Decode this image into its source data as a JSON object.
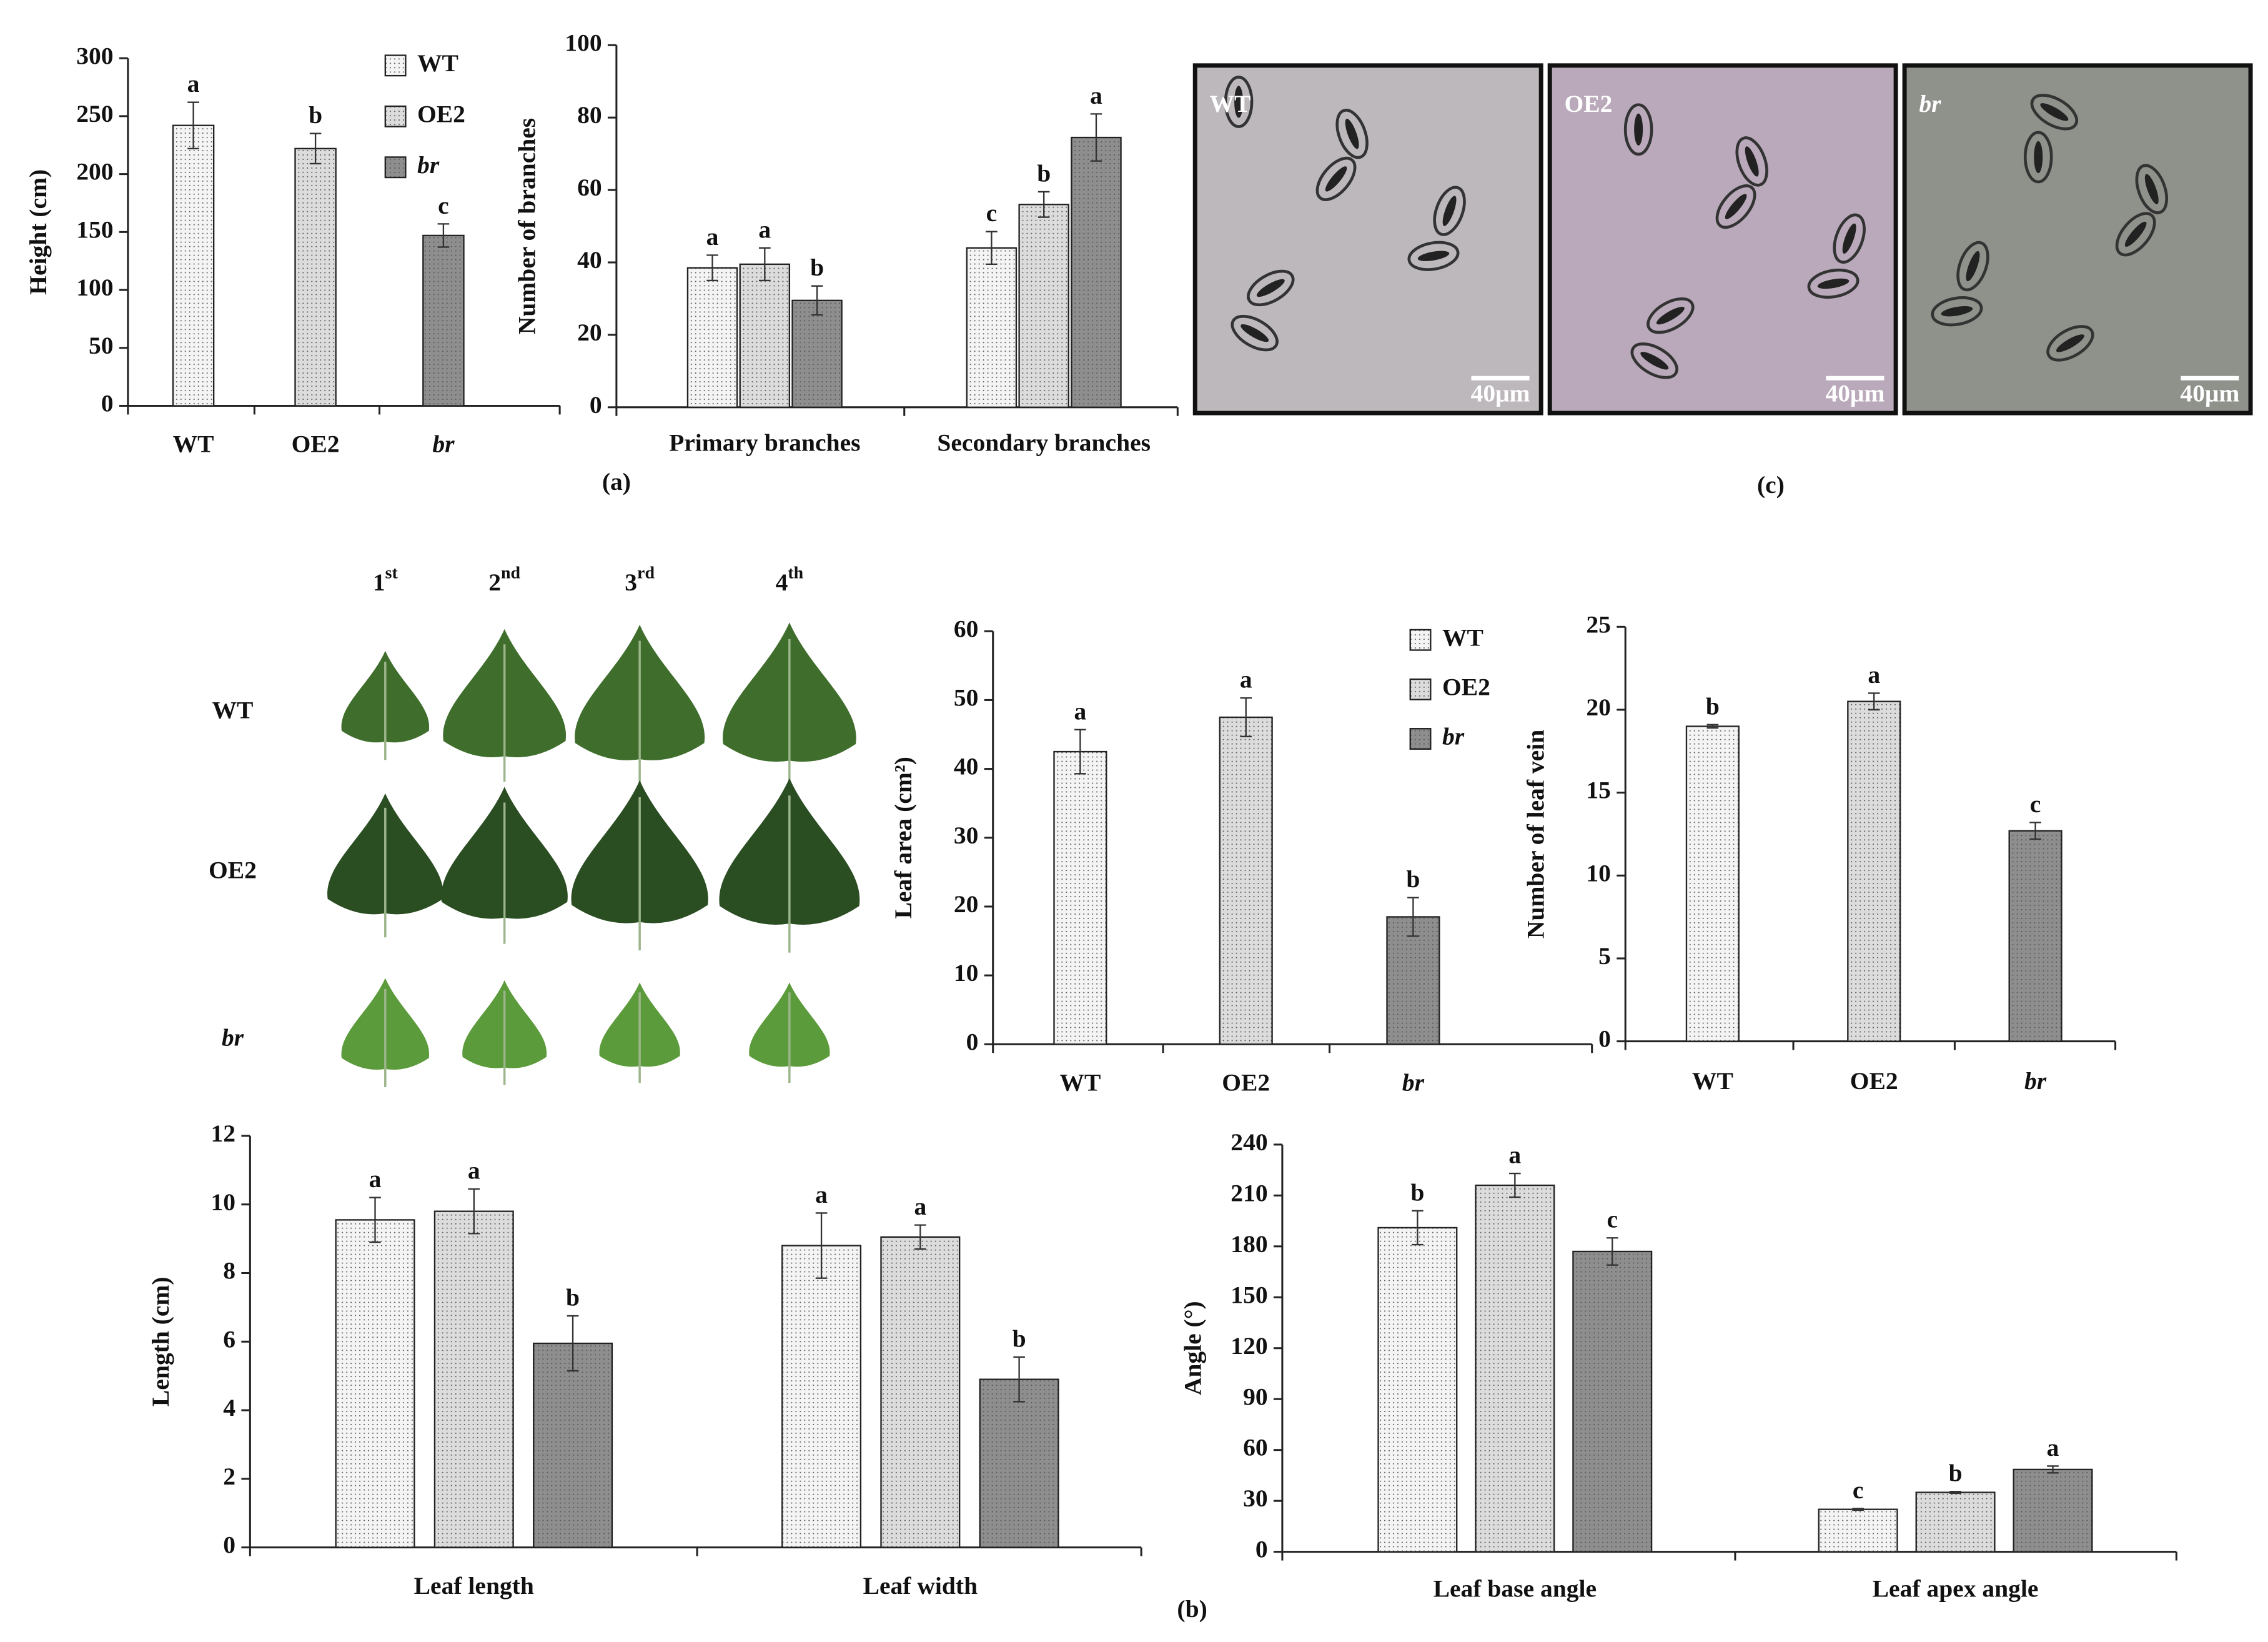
{
  "chart_data": [
    {
      "type": "bar",
      "ylabel": "Height (cm)",
      "categories": [
        "WT",
        "OE2",
        "br"
      ],
      "values": [
        242,
        222,
        147
      ],
      "errors": [
        20,
        13,
        10
      ],
      "labels": [
        "a",
        "b",
        "c"
      ],
      "colors": [
        "#f4f4f4",
        "#dcdcdc",
        "#8e8e8e"
      ],
      "legend": [
        "WT",
        "OE2",
        "br"
      ],
      "italic": [
        false,
        false,
        true
      ],
      "ylim": [
        0,
        300
      ],
      "yticks": [
        0,
        50,
        100,
        150,
        200,
        250,
        300
      ]
    },
    {
      "type": "bar",
      "ylabel": "Number of branches",
      "panel_label": "(a)",
      "categories": [
        "Primary branches",
        "Secondary branches"
      ],
      "series": [
        {
          "color": "#f4f4f4",
          "values": [
            38.5,
            44
          ],
          "errors": [
            3.5,
            4.5
          ],
          "labels": [
            "a",
            "c"
          ]
        },
        {
          "color": "#dcdcdc",
          "values": [
            39.5,
            56
          ],
          "errors": [
            4.5,
            3.5
          ],
          "labels": [
            "a",
            "b"
          ]
        },
        {
          "color": "#8e8e8e",
          "values": [
            29.5,
            74.5
          ],
          "errors": [
            4,
            6.5
          ],
          "labels": [
            "b",
            "a"
          ]
        }
      ],
      "ylim": [
        0,
        100
      ],
      "yticks": [
        0,
        20,
        40,
        60,
        80,
        100
      ]
    },
    {
      "type": "bar",
      "ylabel": "Leaf area (cm²)",
      "categories": [
        "WT",
        "OE2",
        "br"
      ],
      "values": [
        42.5,
        47.5,
        18.5
      ],
      "errors": [
        3.2,
        2.8,
        2.8
      ],
      "labels": [
        "a",
        "a",
        "b"
      ],
      "colors": [
        "#f4f4f4",
        "#dcdcdc",
        "#8e8e8e"
      ],
      "legend": [
        "WT",
        "OE2",
        "br"
      ],
      "italic": [
        false,
        false,
        true
      ],
      "ylim": [
        0,
        60
      ],
      "yticks": [
        0,
        10,
        20,
        30,
        40,
        50,
        60
      ]
    },
    {
      "type": "bar",
      "ylabel": "Number of leaf vein",
      "categories": [
        "WT",
        "OE2",
        "br"
      ],
      "values": [
        19,
        20.5,
        12.7
      ],
      "errors": [
        0.1,
        0.5,
        0.5
      ],
      "labels": [
        "b",
        "a",
        "c"
      ],
      "colors": [
        "#f4f4f4",
        "#dcdcdc",
        "#8e8e8e"
      ],
      "italic": [
        false,
        false,
        true
      ],
      "ylim": [
        0,
        25
      ],
      "yticks": [
        0,
        5,
        10,
        15,
        20,
        25
      ]
    },
    {
      "type": "bar",
      "ylabel": "Length (cm)",
      "panel_label": "(b)",
      "categories": [
        "Leaf length",
        "Leaf width"
      ],
      "series": [
        {
          "color": "#f4f4f4",
          "values": [
            9.55,
            8.8
          ],
          "errors": [
            0.65,
            0.95
          ],
          "labels": [
            "a",
            "a"
          ]
        },
        {
          "color": "#dcdcdc",
          "values": [
            9.8,
            9.05
          ],
          "errors": [
            0.65,
            0.35
          ],
          "labels": [
            "a",
            "a"
          ]
        },
        {
          "color": "#8e8e8e",
          "values": [
            5.95,
            4.9
          ],
          "errors": [
            0.8,
            0.65
          ],
          "labels": [
            "b",
            "b"
          ]
        }
      ],
      "ylim": [
        0,
        12
      ],
      "yticks": [
        0,
        2,
        4,
        6,
        8,
        10,
        12
      ]
    },
    {
      "type": "bar",
      "ylabel": "Angle (°)",
      "categories": [
        "Leaf base angle",
        "Leaf apex angle"
      ],
      "series": [
        {
          "color": "#f4f4f4",
          "values": [
            191,
            25
          ],
          "errors": [
            10,
            0.5
          ],
          "labels": [
            "b",
            "c"
          ]
        },
        {
          "color": "#dcdcdc",
          "values": [
            216,
            35
          ],
          "errors": [
            7,
            0.5
          ],
          "labels": [
            "a",
            "b"
          ]
        },
        {
          "color": "#8e8e8e",
          "values": [
            177,
            48.5
          ],
          "errors": [
            8,
            2
          ],
          "labels": [
            "c",
            "a"
          ]
        }
      ],
      "ylim": [
        0,
        240
      ],
      "yticks": [
        0,
        30,
        60,
        90,
        120,
        150,
        180,
        210,
        240
      ]
    }
  ],
  "micrographs": {
    "panel_label": "(c)",
    "panels": [
      {
        "label": "WT",
        "scale": "40μm"
      },
      {
        "label": "OE2",
        "scale": "40μm"
      },
      {
        "label": "br",
        "scale": "40μm"
      }
    ]
  },
  "leaf_photos": {
    "columns": [
      {
        "number": "1",
        "suffix": "st"
      },
      {
        "number": "2",
        "suffix": "nd"
      },
      {
        "number": "3",
        "suffix": "rd"
      },
      {
        "number": "4",
        "suffix": "th"
      }
    ],
    "rows": [
      "WT",
      "OE2",
      "br"
    ]
  }
}
